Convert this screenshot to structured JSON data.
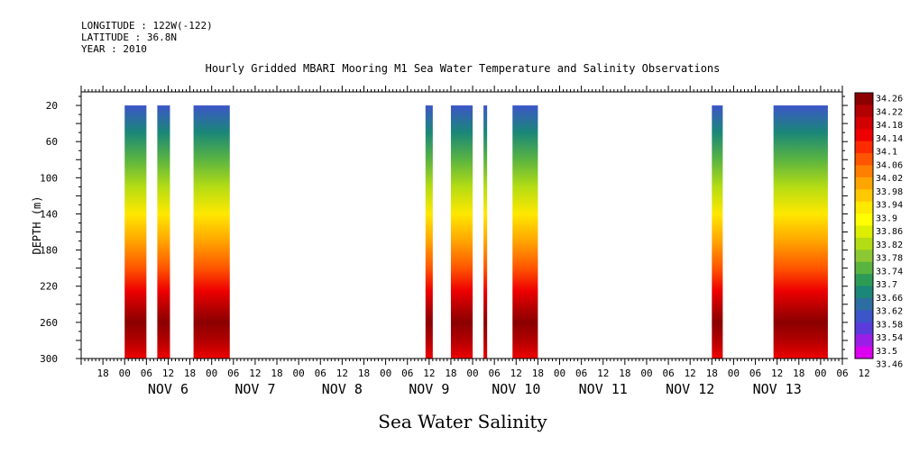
{
  "chart_data": {
    "type": "heatmap",
    "header": {
      "longitude": "LONGITUDE : 122W(-122)",
      "latitude": "LATITUDE : 36.8N",
      "year": "YEAR : 2010"
    },
    "title": "Hourly Gridded MBARI Mooring M1 Sea Water Temperature and Salinity Observations",
    "xlabel": "Sea Water Salinity",
    "ylabel": "DEPTH (m)",
    "y_axis": {
      "range": [
        300,
        5
      ],
      "inverted": true,
      "ticks": [
        20,
        60,
        100,
        140,
        180,
        220,
        260,
        300
      ]
    },
    "x_axis": {
      "unit": "hours since Nov 5 18:00",
      "range": [
        -6,
        204
      ],
      "hour_ticks": [
        "18",
        "00",
        "06",
        "12",
        "18",
        "00",
        "06",
        "12",
        "18",
        "00",
        "06",
        "12",
        "18",
        "00",
        "06",
        "12",
        "18",
        "00",
        "06",
        "12",
        "18",
        "00",
        "06",
        "12",
        "18",
        "00",
        "06",
        "12",
        "18",
        "00",
        "06",
        "12",
        "18",
        "00",
        "06",
        "12"
      ],
      "day_labels": [
        "NOV 6",
        "NOV 7",
        "NOV 8",
        "NOV 9",
        "NOV 10",
        "NOV 11",
        "NOV 12",
        "NOV 13"
      ]
    },
    "colorbar": {
      "labels": [
        "34.26",
        "34.22",
        "34.18",
        "34.14",
        "34.1",
        "34.06",
        "34.02",
        "33.98",
        "33.94",
        "33.9",
        "33.86",
        "33.82",
        "33.78",
        "33.74",
        "33.7",
        "33.66",
        "33.62",
        "33.58",
        "33.54",
        "33.5",
        "33.46"
      ],
      "colors": [
        "#8b0000",
        "#b30000",
        "#d20000",
        "#ee0000",
        "#ff2a00",
        "#ff5500",
        "#ff7f00",
        "#ffa500",
        "#ffc800",
        "#ffe800",
        "#ffff00",
        "#ddee00",
        "#b4dc14",
        "#8cc832",
        "#5ab441",
        "#2d9b55",
        "#1a8778",
        "#2d6ea0",
        "#3c55c8",
        "#5a3cdc",
        "#9b1ee6",
        "#dc00f0"
      ]
    },
    "data_blocks": [
      {
        "start": 6,
        "end": 12
      },
      {
        "start": 15,
        "end": 18.5
      },
      {
        "start": 25,
        "end": 35
      },
      {
        "start": 89,
        "end": 91
      },
      {
        "start": 96,
        "end": 102
      },
      {
        "start": 105,
        "end": 106
      },
      {
        "start": 113,
        "end": 120
      },
      {
        "start": 168,
        "end": 171
      },
      {
        "start": 185,
        "end": 200
      }
    ],
    "depth_profile": [
      {
        "depth": 20,
        "salinity": 33.6
      },
      {
        "depth": 50,
        "salinity": 33.66
      },
      {
        "depth": 80,
        "salinity": 33.72
      },
      {
        "depth": 110,
        "salinity": 33.82
      },
      {
        "depth": 140,
        "salinity": 33.92
      },
      {
        "depth": 170,
        "salinity": 34.0
      },
      {
        "depth": 200,
        "salinity": 34.06
      },
      {
        "depth": 225,
        "salinity": 34.14
      },
      {
        "depth": 245,
        "salinity": 34.22
      },
      {
        "depth": 260,
        "salinity": 34.26
      },
      {
        "depth": 280,
        "salinity": 34.2
      },
      {
        "depth": 300,
        "salinity": 34.14
      }
    ]
  }
}
